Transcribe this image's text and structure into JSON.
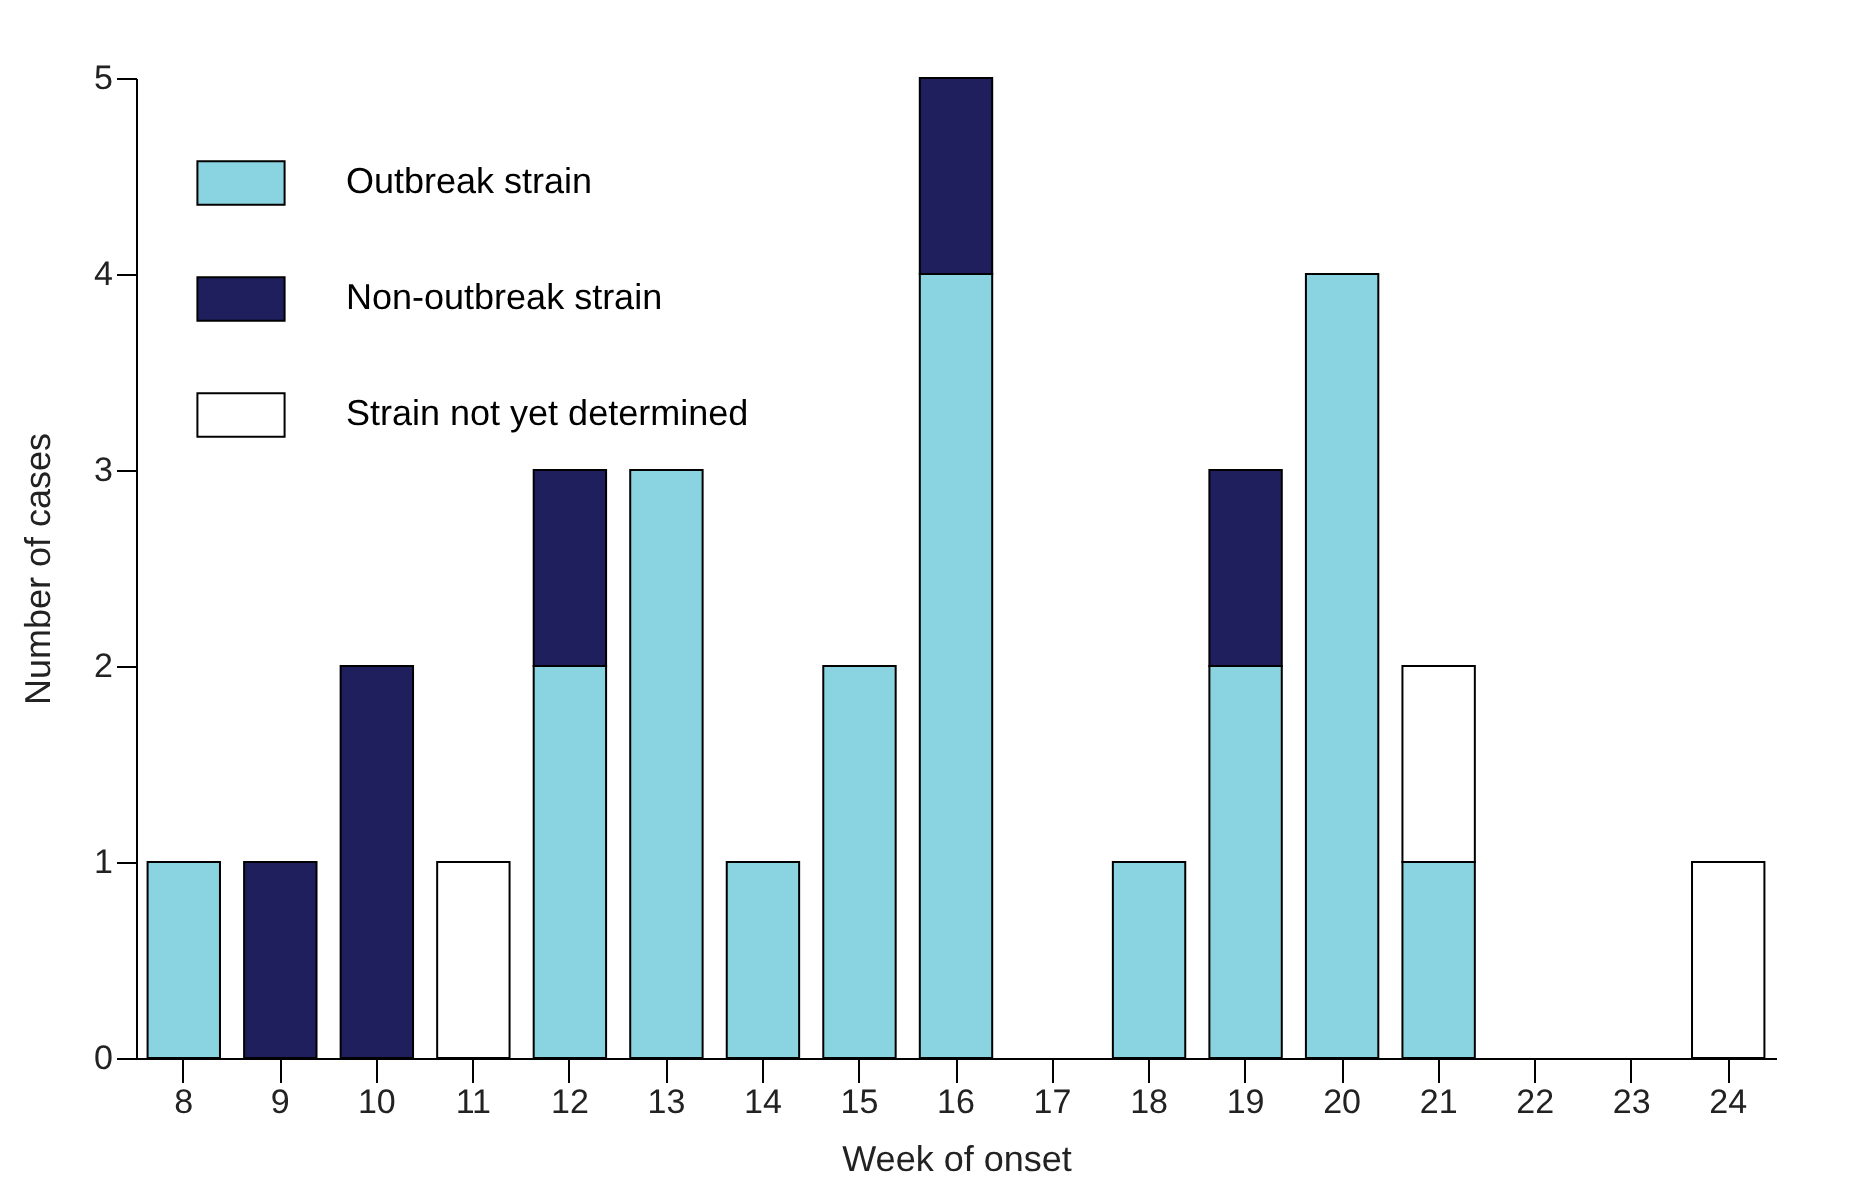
{
  "chart_data": {
    "type": "bar",
    "stacked": true,
    "xlabel": "Week of onset",
    "ylabel": "Number of cases",
    "categories": [
      "8",
      "9",
      "10",
      "11",
      "12",
      "13",
      "14",
      "15",
      "16",
      "17",
      "18",
      "19",
      "20",
      "21",
      "22",
      "23",
      "24"
    ],
    "series": [
      {
        "name": "Outbreak strain",
        "color": "#89d4e0",
        "values": [
          1,
          null,
          null,
          null,
          2,
          3,
          1,
          2,
          4,
          null,
          1,
          2,
          4,
          1,
          null,
          null,
          null
        ]
      },
      {
        "name": "Non-outbreak strain",
        "color": "#1f1f5e",
        "values": [
          null,
          1,
          2,
          null,
          1,
          null,
          null,
          null,
          1,
          null,
          null,
          1,
          null,
          null,
          null,
          null,
          null
        ]
      },
      {
        "name": "Strain not yet determined",
        "color": "#ffffff",
        "values": [
          null,
          null,
          null,
          1,
          null,
          null,
          null,
          null,
          null,
          null,
          null,
          null,
          null,
          1,
          null,
          null,
          1
        ]
      }
    ],
    "ylim": [
      0,
      5
    ],
    "yticks": [
      0,
      1,
      2,
      3,
      4,
      5
    ],
    "grid": false,
    "legend": "top left"
  }
}
